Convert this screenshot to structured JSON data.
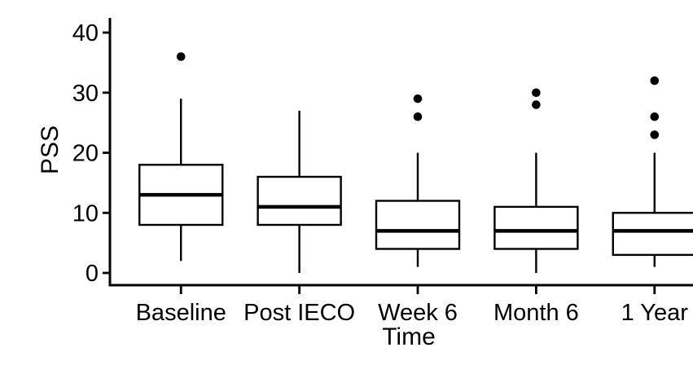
{
  "figure": {
    "background": "#ffffff",
    "ink_color": "#000000"
  },
  "chart_data": {
    "type": "boxplot",
    "title": "",
    "xlabel": "Time",
    "ylabel": "PSS",
    "categories": [
      "Baseline",
      "Post IECO",
      "Week 6",
      "Month 6",
      "1 Year"
    ],
    "y_ticks": [
      0,
      10,
      20,
      30,
      40
    ],
    "ylim": [
      -2,
      42
    ],
    "grid": false,
    "legend": "none",
    "box_fill": "#ffffff",
    "box_stroke": "#000000",
    "outlier_color": "#000000",
    "series": [
      {
        "category": "Baseline",
        "whisker_low": 2,
        "q1": 8,
        "median": 13,
        "q3": 18,
        "whisker_high": 29,
        "outliers": [
          36
        ]
      },
      {
        "category": "Post IECO",
        "whisker_low": 0,
        "q1": 8,
        "median": 11,
        "q3": 16,
        "whisker_high": 27,
        "outliers": []
      },
      {
        "category": "Week 6",
        "whisker_low": 1,
        "q1": 4,
        "median": 7,
        "q3": 12,
        "whisker_high": 20,
        "outliers": [
          26,
          29
        ]
      },
      {
        "category": "Month 6",
        "whisker_low": 0,
        "q1": 4,
        "median": 7,
        "q3": 11,
        "whisker_high": 20,
        "outliers": [
          28,
          30
        ]
      },
      {
        "category": "1 Year",
        "whisker_low": 1,
        "q1": 3,
        "median": 7,
        "q3": 10,
        "whisker_high": 20,
        "outliers": [
          23,
          26,
          32
        ]
      }
    ]
  }
}
